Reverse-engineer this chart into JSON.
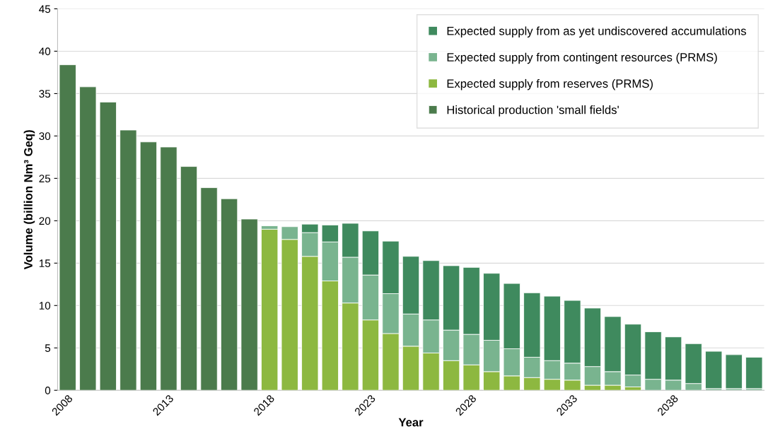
{
  "chart_data": {
    "type": "bar",
    "stacked": true,
    "xlabel": "Year",
    "ylabel": "Volume (billion Nm³ Geq)",
    "categories": [
      "2008",
      null,
      null,
      null,
      null,
      "2013",
      null,
      null,
      null,
      null,
      "2018",
      null,
      null,
      null,
      null,
      "2023",
      null,
      null,
      null,
      null,
      "2028",
      null,
      null,
      null,
      null,
      "2033",
      null,
      null,
      null,
      null,
      "2038",
      null,
      null,
      null,
      null
    ],
    "series": [
      {
        "name": "Historical production 'small fields'",
        "color": "#4b7b4c",
        "values": [
          38.4,
          35.8,
          34.0,
          30.7,
          29.3,
          28.7,
          26.4,
          23.9,
          22.6,
          20.2,
          null,
          null,
          null,
          null,
          null,
          null,
          null,
          null,
          null,
          null,
          null,
          null,
          null,
          null,
          null,
          null,
          null,
          null,
          null,
          null,
          null,
          null,
          null,
          null,
          null
        ]
      },
      {
        "name": "Expected supply from reserves (PRMS)",
        "color": "#8db840",
        "values": [
          null,
          null,
          null,
          null,
          null,
          null,
          null,
          null,
          null,
          null,
          19.0,
          17.8,
          15.8,
          12.9,
          10.3,
          8.3,
          6.7,
          5.2,
          4.4,
          3.5,
          3.0,
          2.2,
          1.7,
          1.5,
          1.3,
          1.2,
          0.6,
          0.6,
          0.4,
          0,
          0,
          0,
          0,
          0,
          0
        ]
      },
      {
        "name": "Expected supply from contingent resources (PRMS)",
        "color": "#79b48f",
        "values": [
          null,
          null,
          null,
          null,
          null,
          null,
          null,
          null,
          null,
          null,
          0.4,
          1.5,
          2.8,
          4.6,
          5.4,
          5.3,
          4.7,
          3.8,
          3.9,
          3.6,
          3.6,
          3.7,
          3.2,
          2.4,
          2.2,
          2.0,
          2.2,
          1.6,
          1.4,
          1.3,
          1.2,
          0.8,
          0.2,
          0.2,
          0.2
        ]
      },
      {
        "name": "Expected supply from as yet undiscovered accumulations",
        "color": "#3f8a5e",
        "values": [
          null,
          null,
          null,
          null,
          null,
          null,
          null,
          null,
          null,
          null,
          0,
          0,
          1.0,
          2.0,
          4.0,
          5.2,
          6.2,
          6.8,
          7.0,
          7.6,
          7.9,
          7.9,
          7.7,
          7.6,
          7.6,
          7.4,
          6.9,
          6.5,
          6.0,
          5.6,
          5.1,
          4.7,
          4.4,
          4.0,
          3.7
        ]
      }
    ],
    "ylim": [
      0,
      45
    ],
    "yticks": [
      0,
      5,
      10,
      15,
      20,
      25,
      30,
      35,
      40,
      45
    ],
    "grid": "y",
    "legend": "top right"
  }
}
